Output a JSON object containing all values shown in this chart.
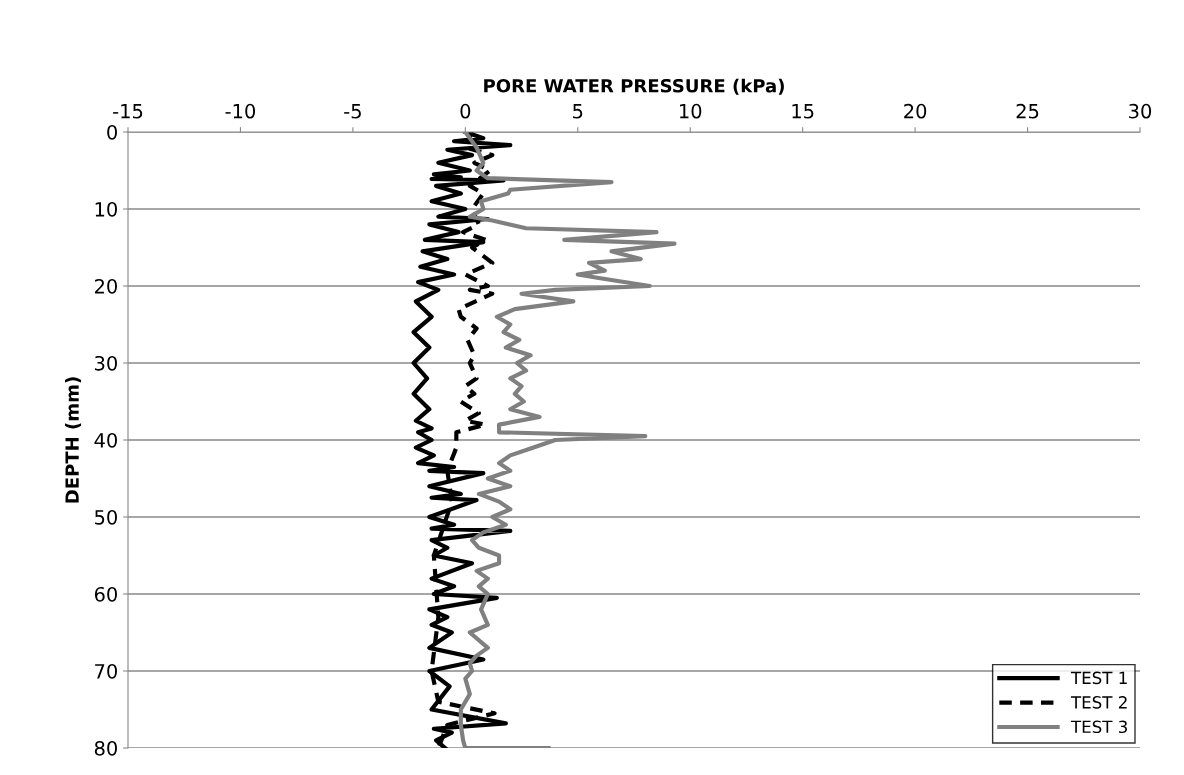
{
  "chart_data": {
    "type": "line",
    "xlabel": "PORE WATER PRESSURE (kPa)",
    "ylabel": "DEPTH (mm)",
    "xlim": [
      -15,
      30
    ],
    "xticks": [
      -15,
      -10,
      -5,
      0,
      5,
      10,
      15,
      20,
      25,
      30
    ],
    "ylim": [
      80,
      0
    ],
    "yticks": [
      0,
      10,
      20,
      30,
      40,
      50,
      60,
      70,
      80
    ],
    "grid": "y",
    "legend": "bottom right",
    "marker": "none",
    "series": [
      {
        "name": "TEST 1",
        "color": "#000000",
        "line_style": "solid",
        "x": [
          0,
          0.8,
          -0.5,
          2,
          -0.8,
          0.3,
          -1.2,
          0.2,
          -1.4,
          -0.2,
          -1.5,
          1.7,
          -1.3,
          -0.2,
          -1.5,
          0,
          -1.2,
          1,
          -1.6,
          -0.3,
          -1.8,
          0.8,
          -1.9,
          -0.8,
          -2,
          -0.5,
          -2.1,
          -1.2,
          -2.2,
          -1.5,
          -2.3,
          -1.6,
          -2.3,
          -1.7,
          -2.3,
          -1.6,
          -2.2,
          -1.5,
          -2.1,
          -1.5,
          -2.2,
          -1.4,
          -2.1,
          -0.5,
          -1.6,
          0.8,
          -1.6,
          -0.2,
          -1.5,
          0.5,
          -1.6,
          -0.5,
          -1.5,
          2,
          -1.5,
          -0.8,
          -1.4,
          0.3,
          -1.5,
          -0.5,
          -1.4,
          1.4,
          -1.6,
          -0.8,
          -1.5,
          -0.6,
          -1.6,
          0.8,
          -1.6,
          -0.7,
          -1.5,
          1.8,
          -1.4,
          -0.6,
          -1.3,
          -0.9
        ],
        "values": [
          0,
          0.8,
          1.2,
          1.7,
          2.3,
          3,
          4,
          5,
          5.5,
          5.9,
          6.1,
          6.3,
          7,
          8,
          9,
          10,
          11,
          11.3,
          12,
          13,
          14,
          14.3,
          15.5,
          16.5,
          17.5,
          18.5,
          19.5,
          20.5,
          22,
          24,
          26,
          28,
          30,
          32,
          34,
          36,
          37.5,
          38.5,
          39,
          40,
          41,
          42,
          43,
          43.5,
          44,
          44.3,
          46,
          47,
          47.5,
          47.8,
          50,
          51,
          51.5,
          51.8,
          53,
          54,
          55,
          56,
          58,
          59,
          60,
          60.5,
          62,
          63,
          64,
          65,
          67,
          68.5,
          70,
          72,
          75,
          76.8,
          77.5,
          78,
          79,
          80
        ]
      },
      {
        "name": "TEST 2",
        "color": "#000000",
        "line_style": "dashed",
        "x": [
          0.3,
          0,
          1.2,
          0.4,
          1.1,
          0.2,
          0.8,
          0.3,
          0.6,
          -0.1,
          0.9,
          0.3,
          1.2,
          0,
          1,
          0.2,
          1.2,
          -0.3,
          -0.2,
          0.5,
          0.1,
          0.4,
          0.2,
          0.5,
          0,
          0.4,
          -0.2,
          0.6,
          0,
          0.9,
          -0.4,
          -0.4,
          -0.8,
          -0.6,
          -1.4,
          -1.2,
          -1.5,
          -1.2,
          1.3,
          -0.8,
          -1.2
        ],
        "values": [
          0,
          2,
          3,
          4,
          5,
          7,
          8,
          10,
          12,
          13,
          14,
          15,
          17,
          18.5,
          20,
          20.5,
          21,
          23,
          24,
          25.5,
          27,
          29,
          30,
          32,
          33,
          34,
          35,
          36.5,
          37.5,
          38,
          39,
          41,
          44,
          48,
          55,
          63,
          70,
          74,
          75.5,
          77,
          80
        ]
      },
      {
        "name": "TEST 3",
        "color": "#808080",
        "line_style": "solid",
        "x": [
          0,
          0.5,
          0.8,
          0.5,
          1,
          6.5,
          2,
          1.9,
          0.7,
          0.8,
          0.2,
          1.2,
          2.7,
          8.5,
          4.4,
          9.3,
          6.5,
          7.8,
          5.5,
          6.2,
          5,
          6,
          8.2,
          4,
          2.5,
          4.8,
          2.2,
          1.4,
          2,
          1.7,
          2.4,
          1.8,
          2.9,
          2.3,
          2.7,
          2,
          2.5,
          2.2,
          2.6,
          2,
          3.3,
          1.5,
          1.5,
          8,
          4,
          3,
          2,
          1.5,
          2,
          1,
          2,
          0.6,
          1.5,
          2,
          1.2,
          1.8,
          0.8,
          0.3,
          0.6,
          1.5,
          1.5,
          0.5,
          1,
          0.6,
          1,
          0.7,
          1,
          0.2,
          1,
          0.5,
          0.2,
          0.3,
          0,
          0.2,
          -0.2,
          -0.2,
          -0.1,
          0,
          3.7
        ],
        "values": [
          0,
          2,
          4,
          5,
          6,
          6.5,
          7.5,
          8,
          9,
          10,
          11,
          11.5,
          12.5,
          13,
          14,
          14.5,
          15.5,
          16.5,
          17,
          18,
          18.5,
          19,
          20,
          20.5,
          21,
          22,
          23,
          24,
          25,
          26,
          27,
          28,
          29,
          30,
          31,
          32,
          33,
          34,
          35,
          36,
          37,
          38,
          39,
          39.5,
          40,
          41,
          42,
          43,
          44,
          45,
          46,
          47,
          48,
          49,
          50,
          51,
          52,
          53,
          54,
          55,
          56,
          57,
          58,
          59,
          60,
          62,
          64,
          65,
          67,
          68,
          69,
          70,
          71,
          73,
          75,
          77,
          79,
          80,
          80
        ]
      }
    ]
  }
}
